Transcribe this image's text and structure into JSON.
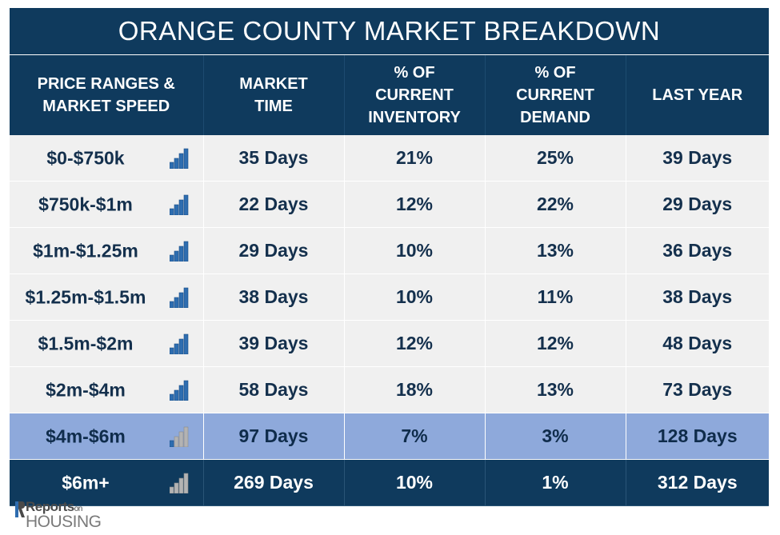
{
  "title": "ORANGE COUNTY MARKET BREAKDOWN",
  "headers": [
    [
      "PRICE RANGES &",
      "MARKET SPEED"
    ],
    [
      "MARKET",
      "TIME"
    ],
    [
      "% OF",
      "CURRENT",
      "INVENTORY"
    ],
    [
      "% OF",
      "CURRENT",
      "DEMAND"
    ],
    [
      "LAST YEAR"
    ]
  ],
  "rows": [
    {
      "range": "$0-$750k",
      "market_time": "35 Days",
      "inventory": "21%",
      "demand": "25%",
      "last_year": "39 Days",
      "speed_icon": "bar-signal-blue-icon",
      "speed_level": 4,
      "style": "light"
    },
    {
      "range": "$750k-$1m",
      "market_time": "22 Days",
      "inventory": "12%",
      "demand": "22%",
      "last_year": "29 Days",
      "speed_icon": "bar-signal-blue-icon",
      "speed_level": 4,
      "style": "light"
    },
    {
      "range": "$1m-$1.25m",
      "market_time": "29 Days",
      "inventory": "10%",
      "demand": "13%",
      "last_year": "36 Days",
      "speed_icon": "bar-signal-blue-icon",
      "speed_level": 4,
      "style": "light"
    },
    {
      "range": "$1.25m-$1.5m",
      "market_time": "38 Days",
      "inventory": "10%",
      "demand": "11%",
      "last_year": "38 Days",
      "speed_icon": "bar-signal-blue-icon",
      "speed_level": 4,
      "style": "light"
    },
    {
      "range": "$1.5m-$2m",
      "market_time": "39 Days",
      "inventory": "12%",
      "demand": "12%",
      "last_year": "48 Days",
      "speed_icon": "bar-signal-blue-icon",
      "speed_level": 4,
      "style": "light"
    },
    {
      "range": "$2m-$4m",
      "market_time": "58 Days",
      "inventory": "18%",
      "demand": "13%",
      "last_year": "73 Days",
      "speed_icon": "bar-signal-blue-icon",
      "speed_level": 4,
      "style": "light"
    },
    {
      "range": "$4m-$6m",
      "market_time": "97 Days",
      "inventory": "7%",
      "demand": "3%",
      "last_year": "128 Days",
      "speed_icon": "bar-signal-gray-icon",
      "speed_level": 1,
      "style": "mid"
    },
    {
      "range": "$6m+",
      "market_time": "269 Days",
      "inventory": "10%",
      "demand": "1%",
      "last_year": "312 Days",
      "speed_icon": "bar-signal-gray-icon",
      "speed_level": 0,
      "style": "dark"
    }
  ],
  "logo": {
    "top": "Reports",
    "on": "on",
    "bottom": "HOUSING"
  },
  "colors": {
    "header": "#0f3a5d",
    "row_light": "#f0f0f0",
    "row_mid": "#8ea9db",
    "bar_active": "#2e6db0",
    "bar_inactive": "#b3b3b3"
  }
}
